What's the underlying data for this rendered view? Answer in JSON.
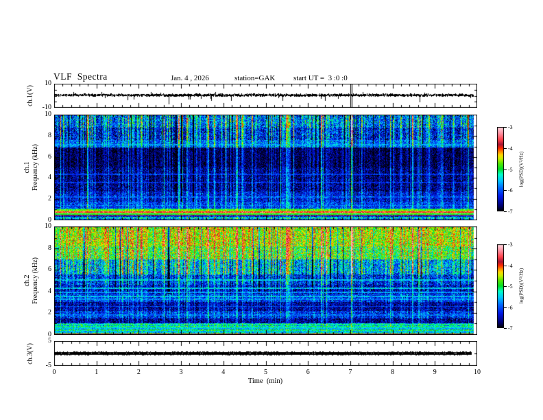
{
  "header": {
    "title": "VLF  Spectra",
    "date": "Jan. 4 , 2026",
    "station": "station=GAK",
    "start_ut": "start UT =  3 :0 :0"
  },
  "x_axis": {
    "label": "Time  (min)",
    "min": 0,
    "max": 10,
    "major_ticks": [
      0,
      1,
      2,
      3,
      4,
      5,
      6,
      7,
      8,
      9,
      10
    ],
    "minor_step": 0.2,
    "data_end_min": 9.9
  },
  "colorbar": {
    "label": "log(PSD)(V²/Hz)",
    "vmin": -7,
    "vmax": -3,
    "ticks": [
      -3,
      -4,
      -5,
      -6,
      -7
    ]
  },
  "palette": [
    [
      -7.0,
      "#000000"
    ],
    [
      -6.75,
      "#000070"
    ],
    [
      -6.3,
      "#0018e8"
    ],
    [
      -5.9,
      "#0068ff"
    ],
    [
      -5.55,
      "#00c8ff"
    ],
    [
      -5.25,
      "#00ffc8"
    ],
    [
      -5.0,
      "#00e028"
    ],
    [
      -4.72,
      "#58e800"
    ],
    [
      -4.5,
      "#c8f000"
    ],
    [
      -4.32,
      "#ffd800"
    ],
    [
      -4.15,
      "#ff8000"
    ],
    [
      -4.0,
      "#ff2800"
    ],
    [
      -3.82,
      "#a81535"
    ],
    [
      -3.6,
      "#ff4048"
    ],
    [
      -3.3,
      "#ff90a0"
    ],
    [
      -3.0,
      "#ffd8e0"
    ]
  ],
  "chart_data": [
    {
      "id": "ch1_wave",
      "type": "line",
      "ylabel": "ch.1(V)",
      "ylim": [
        -10,
        10
      ],
      "yticks": [
        10,
        -10
      ],
      "yminor": [
        5,
        0,
        -5
      ],
      "signal": {
        "mean": 0.5,
        "noise_amp": 1.5,
        "spike_rate": 0.025,
        "spike_depth": [
          1.5,
          4.5
        ],
        "big_spike_rate": 0.004,
        "event_time_min": 7.0,
        "t_end_min": 9.9
      },
      "seed": 11
    },
    {
      "id": "spec1",
      "type": "heatmap",
      "channel": "ch.1",
      "ylabel": "Frequency (kHz)",
      "ylim": [
        0,
        10
      ],
      "yticks": [
        0,
        2,
        4,
        6,
        8,
        10
      ],
      "zunits": "log(PSD)(V²/Hz)",
      "bands": [
        [
          8.8,
          10.01,
          -6.1,
          0.45,
          1.0
        ],
        [
          7.6,
          8.8,
          -6.45,
          0.4,
          0.95
        ],
        [
          6.9,
          7.6,
          -6.05,
          0.35,
          0.6
        ],
        [
          5.0,
          6.9,
          -6.9,
          0.25,
          0.5
        ],
        [
          2.7,
          5.0,
          -6.75,
          0.3,
          0.55
        ],
        [
          1.7,
          2.7,
          -6.45,
          0.3,
          0.5
        ],
        [
          1.08,
          1.7,
          -6.25,
          0.3,
          0.45
        ],
        [
          0.98,
          1.08,
          -5.2,
          0.25,
          0.2
        ],
        [
          0.88,
          0.98,
          -4.85,
          0.2,
          0.15
        ],
        [
          0.78,
          0.88,
          -4.45,
          0.15,
          0.1
        ],
        [
          0.7,
          0.78,
          -4.1,
          0.12,
          0.08
        ],
        [
          0.56,
          0.7,
          -4.55,
          0.15,
          0.1
        ],
        [
          0.47,
          0.56,
          -5.05,
          0.15,
          0.1
        ],
        [
          0.38,
          0.47,
          -3.82,
          0.08,
          0.03
        ],
        [
          0.27,
          0.38,
          -6.4,
          0.35,
          0.2
        ],
        [
          0.08,
          0.27,
          -5.65,
          0.45,
          0.3
        ],
        [
          0.0,
          0.08,
          -6.0,
          0.3,
          0.2
        ]
      ],
      "hlines": [
        [
          7.15,
          -5.85
        ],
        [
          4.35,
          -6.25
        ],
        [
          3.55,
          -6.3
        ],
        [
          2.15,
          -6.05
        ],
        [
          1.35,
          -6.0
        ],
        [
          0.74,
          -3.7
        ]
      ],
      "t_end_min": 9.9,
      "seed": 7
    },
    {
      "id": "spec2",
      "type": "heatmap",
      "channel": "ch.2",
      "ylabel": "Frequency (kHz)",
      "ylim": [
        0,
        10
      ],
      "yticks": [
        0,
        2,
        4,
        6,
        8,
        10
      ],
      "zunits": "log(PSD)(V²/Hz)",
      "bands": [
        [
          8.2,
          10.01,
          -4.75,
          0.35,
          0.55
        ],
        [
          7.0,
          8.2,
          -5.05,
          0.4,
          0.7
        ],
        [
          5.6,
          7.0,
          -5.9,
          0.45,
          0.95
        ],
        [
          4.6,
          5.6,
          -6.35,
          0.4,
          0.6
        ],
        [
          3.8,
          4.6,
          -6.55,
          0.35,
          0.5
        ],
        [
          3.0,
          3.8,
          -6.3,
          0.35,
          0.45
        ],
        [
          2.2,
          3.0,
          -6.7,
          0.3,
          0.4
        ],
        [
          1.5,
          2.2,
          -6.35,
          0.35,
          0.45
        ],
        [
          1.0,
          1.5,
          -6.75,
          0.3,
          0.35
        ],
        [
          0.62,
          1.0,
          -5.7,
          0.4,
          0.3
        ],
        [
          0.47,
          0.62,
          -5.9,
          0.3,
          0.2
        ],
        [
          0.3,
          0.47,
          -5.15,
          0.25,
          0.15
        ],
        [
          0.15,
          0.3,
          -5.6,
          0.3,
          0.15
        ],
        [
          0.06,
          0.15,
          -5.2,
          0.3,
          0.15
        ],
        [
          0.0,
          0.06,
          -3.85,
          0.1,
          0.03
        ]
      ],
      "hlines": [
        [
          5.05,
          -5.6
        ],
        [
          4.3,
          -5.55
        ],
        [
          3.9,
          -5.8
        ],
        [
          3.5,
          -5.65
        ],
        [
          3.25,
          -5.85
        ],
        [
          2.6,
          -6.15
        ],
        [
          1.8,
          -6.05
        ],
        [
          0.9,
          -5.3
        ],
        [
          0.72,
          -5.25
        ],
        [
          0.55,
          -5.55
        ]
      ],
      "t_end_min": 9.9,
      "seed": 13
    },
    {
      "id": "ch3_wave",
      "type": "line",
      "ylabel": "ch.3(V)",
      "ylim": [
        -5,
        5
      ],
      "yticks": [
        5,
        -5
      ],
      "yminor": [
        0
      ],
      "signal": {
        "mean": 0,
        "thickness_v": 1.0,
        "t_end_min": 9.85
      },
      "seed": 5
    }
  ]
}
